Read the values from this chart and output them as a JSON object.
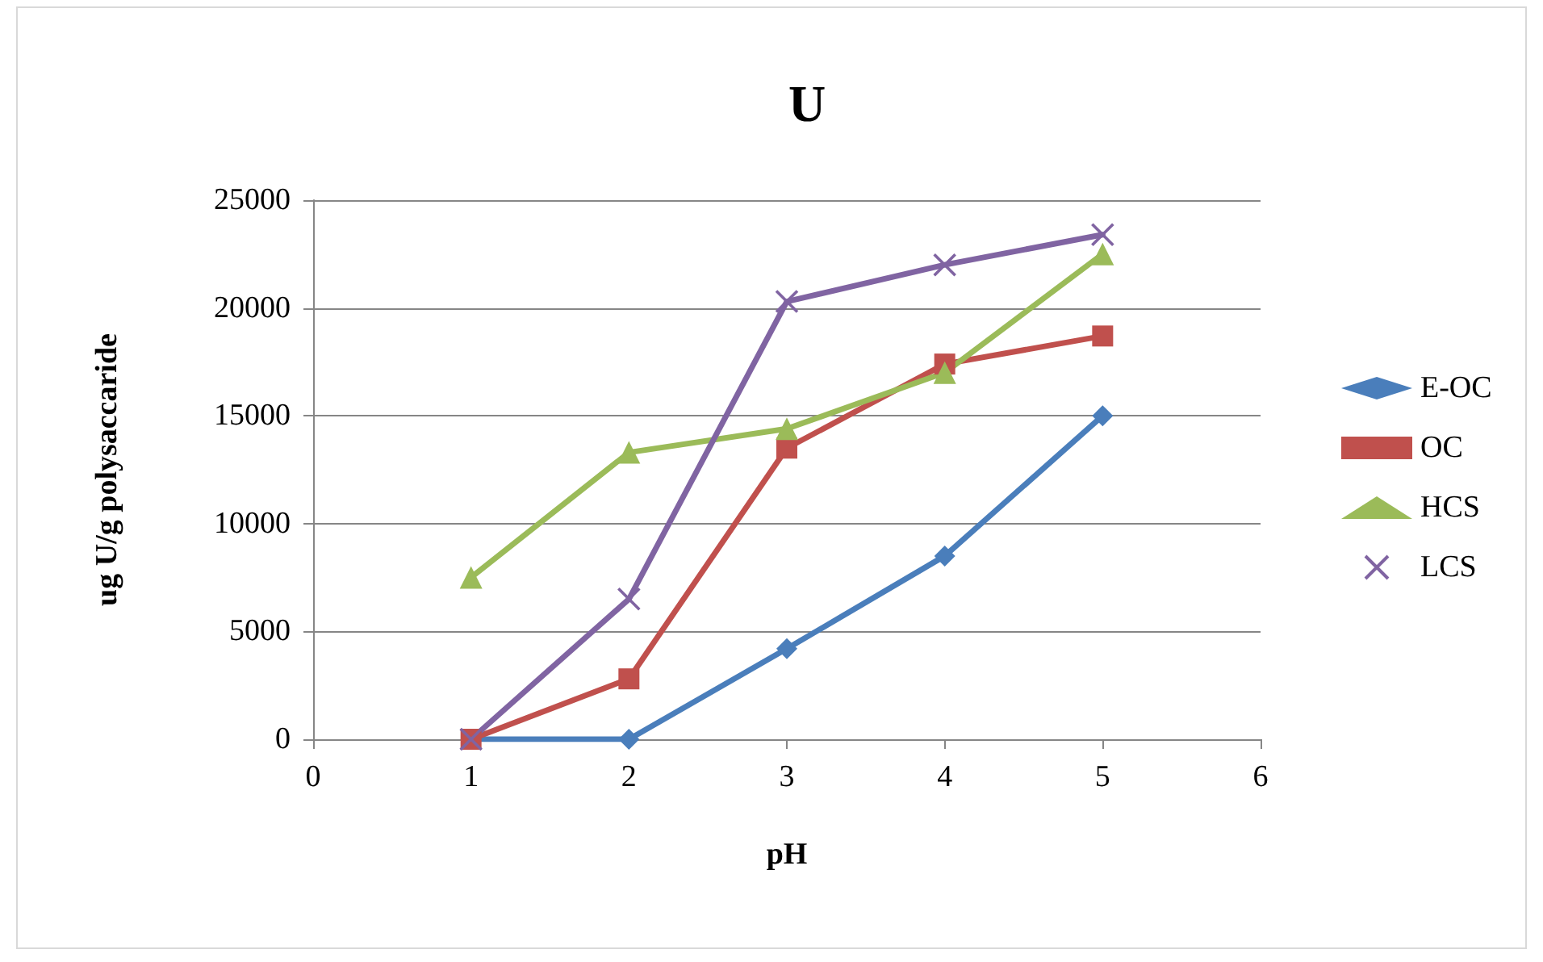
{
  "chart_data": {
    "type": "line",
    "title": "U",
    "xlabel": "pH",
    "ylabel": "ug U/g polysaccaride",
    "x": [
      1,
      2,
      3,
      4,
      5
    ],
    "series": [
      {
        "name": "E-OC",
        "color": "#4a7ebb",
        "marker": "diamond",
        "values": [
          0,
          0,
          4200,
          8500,
          15000
        ]
      },
      {
        "name": "OC",
        "color": "#c0504d",
        "marker": "square",
        "values": [
          0,
          2800,
          13500,
          17400,
          18700
        ]
      },
      {
        "name": "HCS",
        "color": "#9bbb59",
        "marker": "triangle",
        "values": [
          7500,
          13300,
          14400,
          17000,
          22500
        ]
      },
      {
        "name": "LCS",
        "color": "#8064a2",
        "marker": "cross",
        "values": [
          0,
          6500,
          20300,
          22000,
          23400
        ]
      }
    ],
    "xlim": [
      0,
      6
    ],
    "xticks": [
      0,
      1,
      2,
      3,
      4,
      5,
      6
    ],
    "ylim": [
      0,
      25000
    ],
    "yticks": [
      0,
      5000,
      10000,
      15000,
      20000,
      25000
    ],
    "grid": "y",
    "legend": "right",
    "line_style": "solid"
  }
}
